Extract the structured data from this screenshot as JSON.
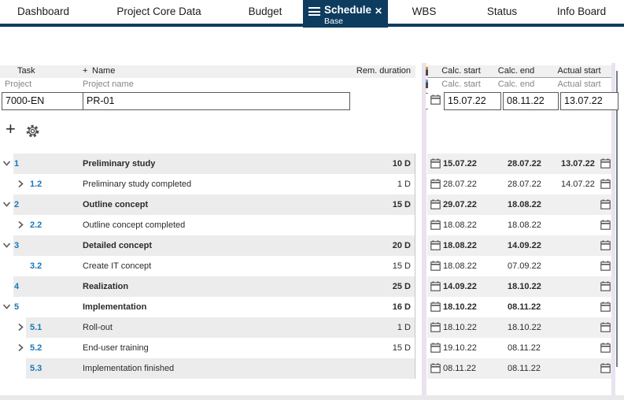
{
  "tabs": [
    {
      "label": "Dashboard"
    },
    {
      "label": "Project Core Data"
    },
    {
      "label": "Budget"
    },
    {
      "label": "Schedule",
      "active": true,
      "sublabel": "Base"
    },
    {
      "label": "WBS"
    },
    {
      "label": "Status"
    },
    {
      "label": "Info Board"
    }
  ],
  "active_tab": {
    "label": "Schedule",
    "sublabel": "Base",
    "close": "✕"
  },
  "header_row1": {
    "task": "Task",
    "name_plus": "+",
    "name": "Name",
    "rem_duration": "Rem. duration",
    "calc_start": "Calc. start",
    "calc_end": "Calc. end",
    "actual_start": "Actual start"
  },
  "header_row2": {
    "task": "Project",
    "name": "Project name",
    "calc_start": "Calc. start",
    "calc_end": "Calc. end",
    "actual_start": "Actual start"
  },
  "filter_row": {
    "task_value": "7000-EN",
    "name_value": "PR-01",
    "calc_start": "15.07.22",
    "calc_end": "08.11.22",
    "actual_start": "13.07.22"
  },
  "toolbar": {
    "add_label": "+",
    "gear_icon": "settings"
  },
  "rows": [
    {
      "num": "1",
      "level": 0,
      "chevron": "down",
      "bold": true,
      "name": "Preliminary study",
      "rem": "10 D",
      "calc_start": "15.07.22",
      "calc_end": "28.07.22",
      "actual_start": "13.07.22"
    },
    {
      "num": "1.2",
      "level": 1,
      "chevron": "right",
      "bold": false,
      "name": "Preliminary study completed",
      "rem": "1 D",
      "calc_start": "28.07.22",
      "calc_end": "28.07.22",
      "actual_start": "14.07.22"
    },
    {
      "num": "2",
      "level": 0,
      "chevron": "down",
      "bold": true,
      "name": "Outline concept",
      "rem": "15 D",
      "calc_start": "29.07.22",
      "calc_end": "18.08.22",
      "actual_start": ""
    },
    {
      "num": "2.2",
      "level": 1,
      "chevron": "right",
      "bold": false,
      "name": "Outline concept completed",
      "rem": "",
      "calc_start": "18.08.22",
      "calc_end": "18.08.22",
      "actual_start": ""
    },
    {
      "num": "3",
      "level": 0,
      "chevron": "down",
      "bold": true,
      "name": "Detailed concept",
      "rem": "20 D",
      "calc_start": "18.08.22",
      "calc_end": "14.09.22",
      "actual_start": ""
    },
    {
      "num": "3.2",
      "level": 1,
      "chevron": "none",
      "bold": false,
      "name": "Create IT concept",
      "rem": "15 D",
      "calc_start": "18.08.22",
      "calc_end": "07.09.22",
      "actual_start": ""
    },
    {
      "num": "4",
      "level": 0,
      "chevron": "none",
      "bold": true,
      "name": "Realization",
      "rem": "25 D",
      "calc_start": "14.09.22",
      "calc_end": "18.10.22",
      "actual_start": ""
    },
    {
      "num": "5",
      "level": 0,
      "chevron": "down",
      "bold": true,
      "name": "Implementation",
      "rem": "16 D",
      "calc_start": "18.10.22",
      "calc_end": "08.11.22",
      "actual_start": ""
    },
    {
      "num": "5.1",
      "level": 1,
      "chevron": "right",
      "bold": false,
      "name": "Roll-out",
      "rem": "1 D",
      "calc_start": "18.10.22",
      "calc_end": "18.10.22",
      "actual_start": ""
    },
    {
      "num": "5.2",
      "level": 1,
      "chevron": "right",
      "bold": false,
      "name": "End-user training",
      "rem": "15 D",
      "calc_start": "19.10.22",
      "calc_end": "08.11.22",
      "actual_start": ""
    },
    {
      "num": "5.3",
      "level": 1,
      "chevron": "none",
      "bold": false,
      "name": "Implementation finished",
      "rem": "",
      "calc_start": "08.11.22",
      "calc_end": "08.11.22",
      "actual_start": ""
    }
  ],
  "colors": {
    "navy": "#0d3c5f",
    "accent_blue": "#1877b8",
    "row_alt_left": "#ececec",
    "row_alt_right": "#f0f0f0",
    "header_bg": "#f0f0f0",
    "splitter_lavender": "#e9e3ef",
    "scroll_thumb": "#72808e"
  }
}
